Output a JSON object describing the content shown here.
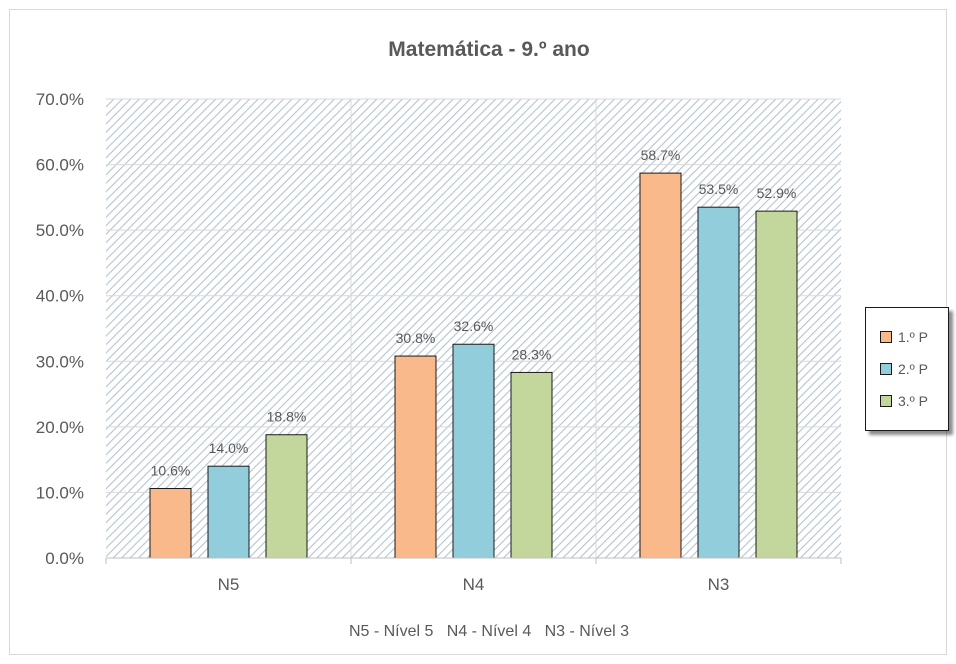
{
  "chart_data": {
    "type": "bar",
    "title": "Matemática - 9.º ano",
    "categories": [
      "N5",
      "N4",
      "N3"
    ],
    "series": [
      {
        "name": "1.º P",
        "values": [
          10.6,
          30.8,
          58.7
        ],
        "labels": [
          "10.6%",
          "30.8%",
          "58.7%"
        ]
      },
      {
        "name": "2.º P",
        "values": [
          14.0,
          32.6,
          53.5
        ],
        "labels": [
          "14.0%",
          "32.6%",
          "53.5%"
        ]
      },
      {
        "name": "3.º P",
        "values": [
          18.8,
          28.3,
          52.9
        ],
        "labels": [
          "18.8%",
          "28.3%",
          "52.9%"
        ]
      }
    ],
    "ylim": [
      0,
      70
    ],
    "y_ticks": [
      "0.0%",
      "10.0%",
      "20.0%",
      "30.0%",
      "40.0%",
      "50.0%",
      "60.0%",
      "70.0%"
    ],
    "xlabel": "",
    "ylabel": "",
    "grid": true,
    "plot_background": "diagonal-hatch",
    "legend_position": "right",
    "footnote": "N5 - Nível 5   N4 - Nível 4   N3 - Nível 3"
  },
  "colors": {
    "series": [
      "#f9b98a",
      "#91cddb",
      "#c3d69b"
    ],
    "bar_border": "#1a1a1a",
    "text": "#595959",
    "grid": "#d9d9d9",
    "hatch": "#b5c4d1"
  }
}
